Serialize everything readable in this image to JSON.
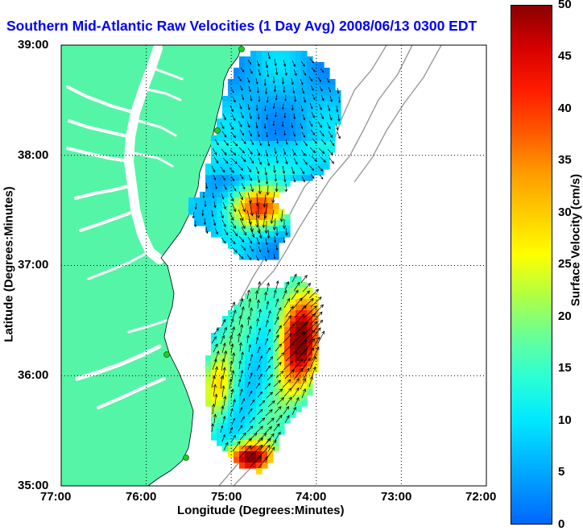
{
  "title": "Southern Mid-Atlantic Raw Velocities (1 Day Avg) 2008/06/13 0300 EDT",
  "axes": {
    "xlabel": "Longitude (Degrees:Minutes)",
    "ylabel": "Latitude (Degrees:Minutes)",
    "x_ticks": [
      "77:00",
      "76:00",
      "75:00",
      "74:00",
      "73:00",
      "72:00"
    ],
    "y_ticks": [
      "39:00",
      "38:00",
      "37:00",
      "36:00",
      "35:00"
    ]
  },
  "colorbar": {
    "label": "Surface Velocity (cm/s)",
    "ticks": [
      "50",
      "45",
      "40",
      "35",
      "30",
      "25",
      "20",
      "15",
      "10",
      "5",
      "0"
    ],
    "range": [
      0,
      50
    ]
  },
  "colors": {
    "land": "#55f5a8",
    "water": "#ffffff",
    "title": "#0000ff",
    "station": "#22cc22"
  },
  "icons": [
    "hf-radar-station-marker",
    "velocity-arrow"
  ]
}
